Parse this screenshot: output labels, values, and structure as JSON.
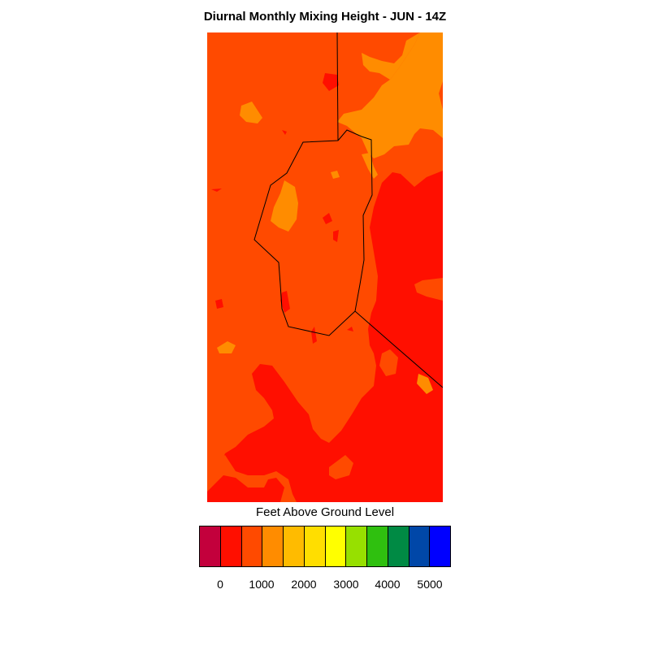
{
  "title": "Diurnal Monthly Mixing Height - JUN - 14Z",
  "colorbar": {
    "label": "Feet Above Ground Level",
    "colors": [
      "#c3003c",
      "#ff0f00",
      "#ff4a00",
      "#ff8c00",
      "#ffbb00",
      "#ffde00",
      "#ffff00",
      "#97e000",
      "#2fc00f",
      "#008a44",
      "#0047a8",
      "#0000ff"
    ],
    "tick_labels": [
      "0",
      "1000",
      "2000",
      "3000",
      "4000",
      "5000"
    ]
  },
  "map_colors": {
    "red": "#ff0f00",
    "red_orange": "#ff4a00",
    "orange": "#ff8c00",
    "boundary": "#000000"
  }
}
